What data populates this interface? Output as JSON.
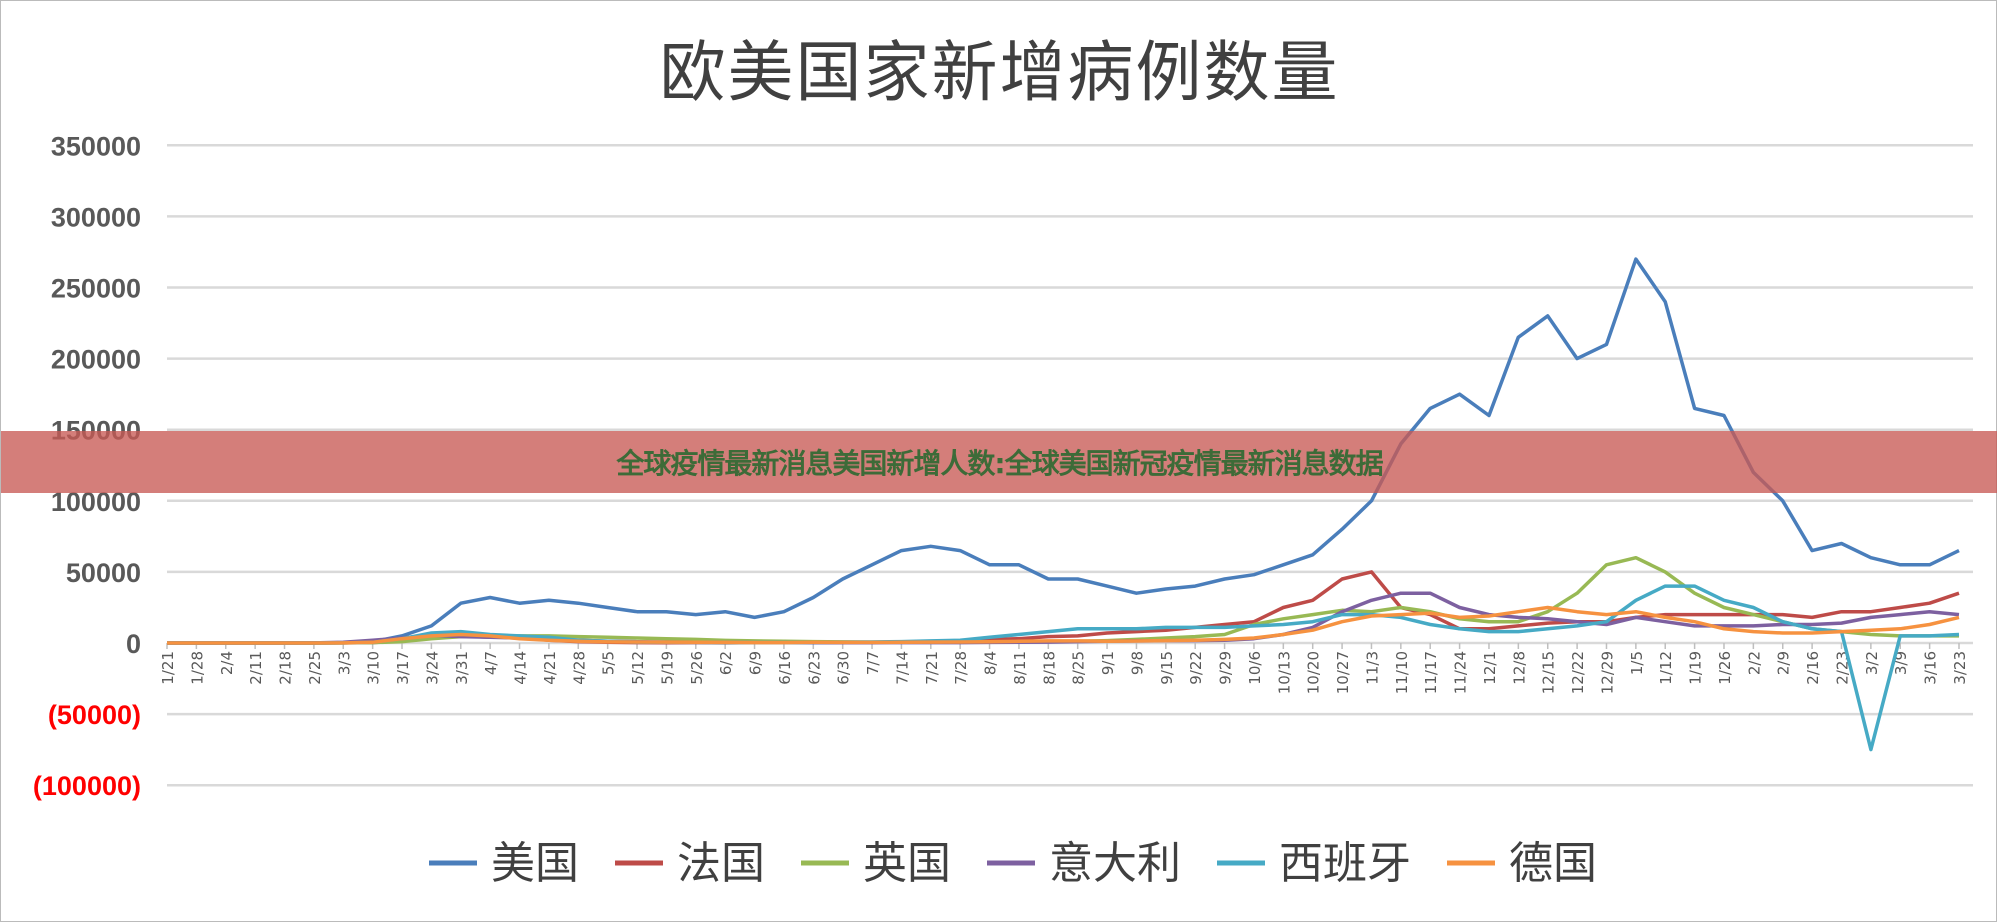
{
  "banner": {
    "text": "全球疫情最新消息美国新增人数:全球美国新冠疫情最新消息数据"
  },
  "chart_data": {
    "type": "line",
    "title": "欧美国家新增病例数量",
    "xlabel": "",
    "ylabel": "",
    "ylim": [
      -100000,
      350000
    ],
    "yticks": [
      350000,
      300000,
      250000,
      200000,
      150000,
      100000,
      50000,
      0,
      -50000,
      -100000
    ],
    "ytick_labels": [
      "350000",
      "300000",
      "250000",
      "200000",
      "150000",
      "100000",
      "50000",
      "0",
      "(50000)",
      "(100000)"
    ],
    "negative_label_color": "#ff0000",
    "grid": true,
    "legend": "bottom",
    "x": [
      "1/21",
      "1/28",
      "2/4",
      "2/11",
      "2/18",
      "2/25",
      "3/3",
      "3/10",
      "3/17",
      "3/24",
      "3/31",
      "4/7",
      "4/14",
      "4/21",
      "4/28",
      "5/5",
      "5/12",
      "5/19",
      "5/26",
      "6/2",
      "6/9",
      "6/16",
      "6/23",
      "6/30",
      "7/7",
      "7/14",
      "7/21",
      "7/28",
      "8/4",
      "8/11",
      "8/18",
      "8/25",
      "9/1",
      "9/8",
      "9/15",
      "9/22",
      "9/29",
      "10/6",
      "10/13",
      "10/20",
      "10/27",
      "11/3",
      "11/10",
      "11/17",
      "11/24",
      "12/1",
      "12/8",
      "12/15",
      "12/22",
      "12/29",
      "1/5",
      "1/12",
      "1/19",
      "1/26",
      "2/2",
      "2/9",
      "2/16",
      "2/23",
      "3/2",
      "3/9",
      "3/16",
      "3/23"
    ],
    "series": [
      {
        "name": "美国",
        "color": "#4a7ebb",
        "values": [
          0,
          0,
          0,
          0,
          0,
          0,
          200,
          1000,
          5000,
          12000,
          28000,
          32000,
          28000,
          30000,
          28000,
          25000,
          22000,
          22000,
          20000,
          22000,
          18000,
          22000,
          32000,
          45000,
          55000,
          65000,
          68000,
          65000,
          55000,
          55000,
          45000,
          45000,
          40000,
          35000,
          38000,
          40000,
          45000,
          48000,
          55000,
          62000,
          80000,
          100000,
          140000,
          165000,
          175000,
          160000,
          215000,
          230000,
          200000,
          210000,
          270000,
          240000,
          165000,
          160000,
          120000,
          100000,
          65000,
          70000,
          60000,
          55000,
          55000,
          65000
        ]
      },
      {
        "name": "法国",
        "color": "#be4b48",
        "values": [
          0,
          0,
          0,
          0,
          0,
          0,
          100,
          300,
          1500,
          3500,
          5000,
          4000,
          4000,
          2000,
          1000,
          500,
          300,
          200,
          300,
          100,
          300,
          400,
          500,
          600,
          500,
          700,
          1000,
          1500,
          2500,
          3000,
          4500,
          5000,
          7000,
          8000,
          9000,
          11000,
          13000,
          15000,
          25000,
          30000,
          45000,
          50000,
          25000,
          20000,
          10000,
          10000,
          12000,
          14000,
          15000,
          15000,
          18000,
          20000,
          20000,
          20000,
          20000,
          20000,
          18000,
          22000,
          22000,
          25000,
          28000,
          35000
        ]
      },
      {
        "name": "英国",
        "color": "#98b954",
        "values": [
          0,
          0,
          0,
          0,
          0,
          0,
          50,
          300,
          1000,
          3000,
          4500,
          5000,
          5000,
          5000,
          4500,
          4000,
          3500,
          3000,
          2500,
          1800,
          1500,
          1200,
          1000,
          800,
          600,
          600,
          700,
          800,
          900,
          1000,
          1100,
          1200,
          1700,
          2500,
          3500,
          4500,
          6000,
          13000,
          17000,
          20000,
          23000,
          22000,
          25000,
          22000,
          17000,
          15000,
          15000,
          22000,
          35000,
          55000,
          60000,
          50000,
          35000,
          25000,
          20000,
          15000,
          10000,
          8000,
          6000,
          5000,
          5000,
          5000
        ]
      },
      {
        "name": "意大利",
        "color": "#7d60a0",
        "values": [
          0,
          0,
          0,
          0,
          0,
          100,
          500,
          2000,
          3500,
          5500,
          4500,
          4000,
          3500,
          3000,
          2000,
          1200,
          900,
          600,
          500,
          400,
          300,
          300,
          200,
          200,
          200,
          250,
          300,
          300,
          400,
          500,
          600,
          1000,
          1300,
          1500,
          1600,
          1700,
          2000,
          3000,
          6000,
          11000,
          22000,
          30000,
          35000,
          35000,
          25000,
          20000,
          18000,
          17000,
          15000,
          13000,
          18000,
          15000,
          12000,
          12000,
          12000,
          13000,
          13000,
          14000,
          18000,
          20000,
          22000,
          20000
        ]
      },
      {
        "name": "西班牙",
        "color": "#46aac5",
        "values": [
          0,
          0,
          0,
          0,
          0,
          0,
          100,
          500,
          3000,
          7000,
          8000,
          6000,
          5000,
          4000,
          2000,
          1200,
          600,
          500,
          400,
          300,
          300,
          300,
          400,
          500,
          700,
          1000,
          1500,
          2000,
          4000,
          6000,
          8000,
          10000,
          10000,
          10000,
          11000,
          11000,
          11000,
          12000,
          13000,
          15000,
          20000,
          20000,
          18000,
          13000,
          10000,
          8000,
          8000,
          10000,
          12000,
          15000,
          30000,
          40000,
          40000,
          30000,
          25000,
          15000,
          10000,
          8000,
          -75000,
          5000,
          5000,
          6000
        ]
      },
      {
        "name": "德国",
        "color": "#f69240",
        "values": [
          0,
          0,
          0,
          0,
          0,
          0,
          100,
          500,
          3000,
          5000,
          6000,
          5000,
          3000,
          2000,
          1200,
          800,
          700,
          600,
          500,
          400,
          300,
          300,
          500,
          400,
          400,
          500,
          600,
          700,
          900,
          1200,
          1500,
          1500,
          1300,
          1400,
          1700,
          2000,
          2500,
          3500,
          6000,
          9000,
          15000,
          19000,
          20000,
          21000,
          18000,
          19000,
          22000,
          25000,
          22000,
          20000,
          22000,
          18000,
          15000,
          10000,
          8000,
          7000,
          7000,
          8000,
          9000,
          10000,
          13000,
          18000
        ]
      }
    ]
  }
}
